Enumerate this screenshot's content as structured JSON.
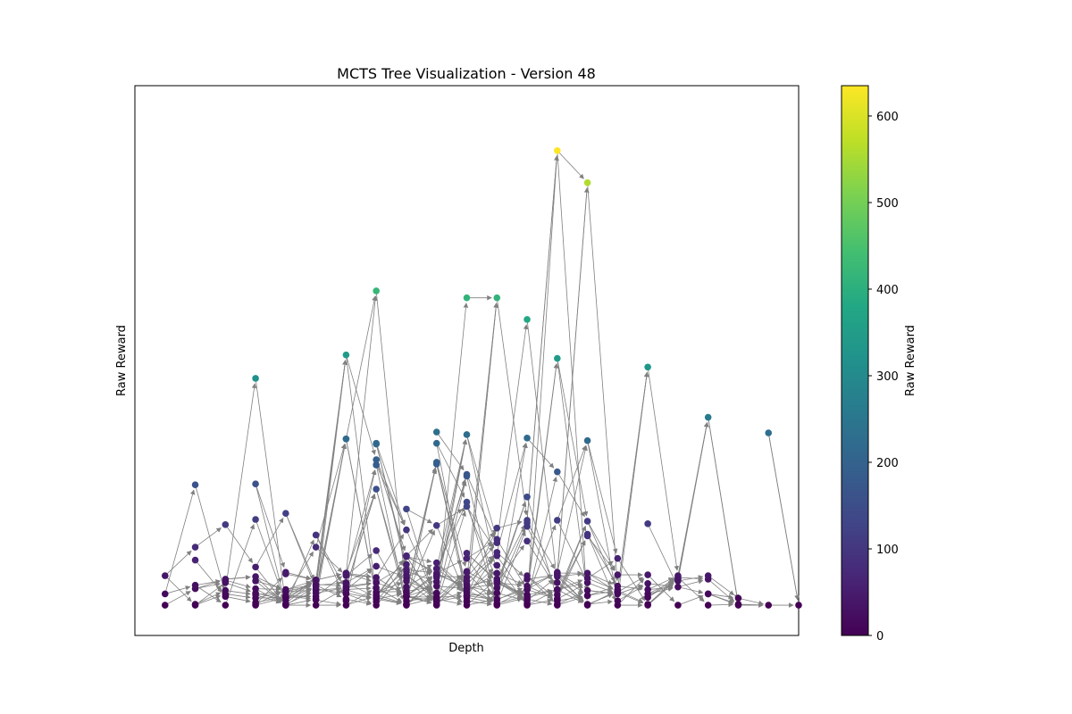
{
  "chart_data": {
    "type": "scatter",
    "title": "MCTS Tree Visualization - Version 48",
    "xlabel": "Depth",
    "ylabel": "Raw Reward",
    "x_ticks_visible": false,
    "y_ticks_visible": false,
    "grid": false,
    "edges_drawn": true,
    "x_range": [
      -1,
      21
    ],
    "y_range": [
      -35,
      600
    ],
    "colorbar": {
      "label": "Raw Reward",
      "colormap": "viridis",
      "range": [
        0,
        635
      ],
      "ticks": [
        "0",
        "100",
        "200",
        "300",
        "400",
        "500",
        "600"
      ]
    },
    "highlight_points": [
      {
        "x": 13,
        "y": 525,
        "reward": 635
      },
      {
        "x": 14,
        "y": 488,
        "reward": 560
      },
      {
        "x": 7,
        "y": 363,
        "reward": 420
      },
      {
        "x": 10,
        "y": 355,
        "reward": 410
      },
      {
        "x": 11,
        "y": 355,
        "reward": 410
      },
      {
        "x": 12,
        "y": 330,
        "reward": 380
      },
      {
        "x": 13,
        "y": 285,
        "reward": 345
      },
      {
        "x": 16,
        "y": 275,
        "reward": 330
      },
      {
        "x": 3,
        "y": 262,
        "reward": 318
      },
      {
        "x": 6,
        "y": 289,
        "reward": 345
      },
      {
        "x": 18,
        "y": 217,
        "reward": 265
      }
    ],
    "depth_levels": [
      0,
      1,
      2,
      3,
      4,
      5,
      6,
      7,
      8,
      9,
      10,
      11,
      12,
      13,
      14,
      15,
      16,
      17,
      18,
      19,
      20,
      21
    ]
  }
}
